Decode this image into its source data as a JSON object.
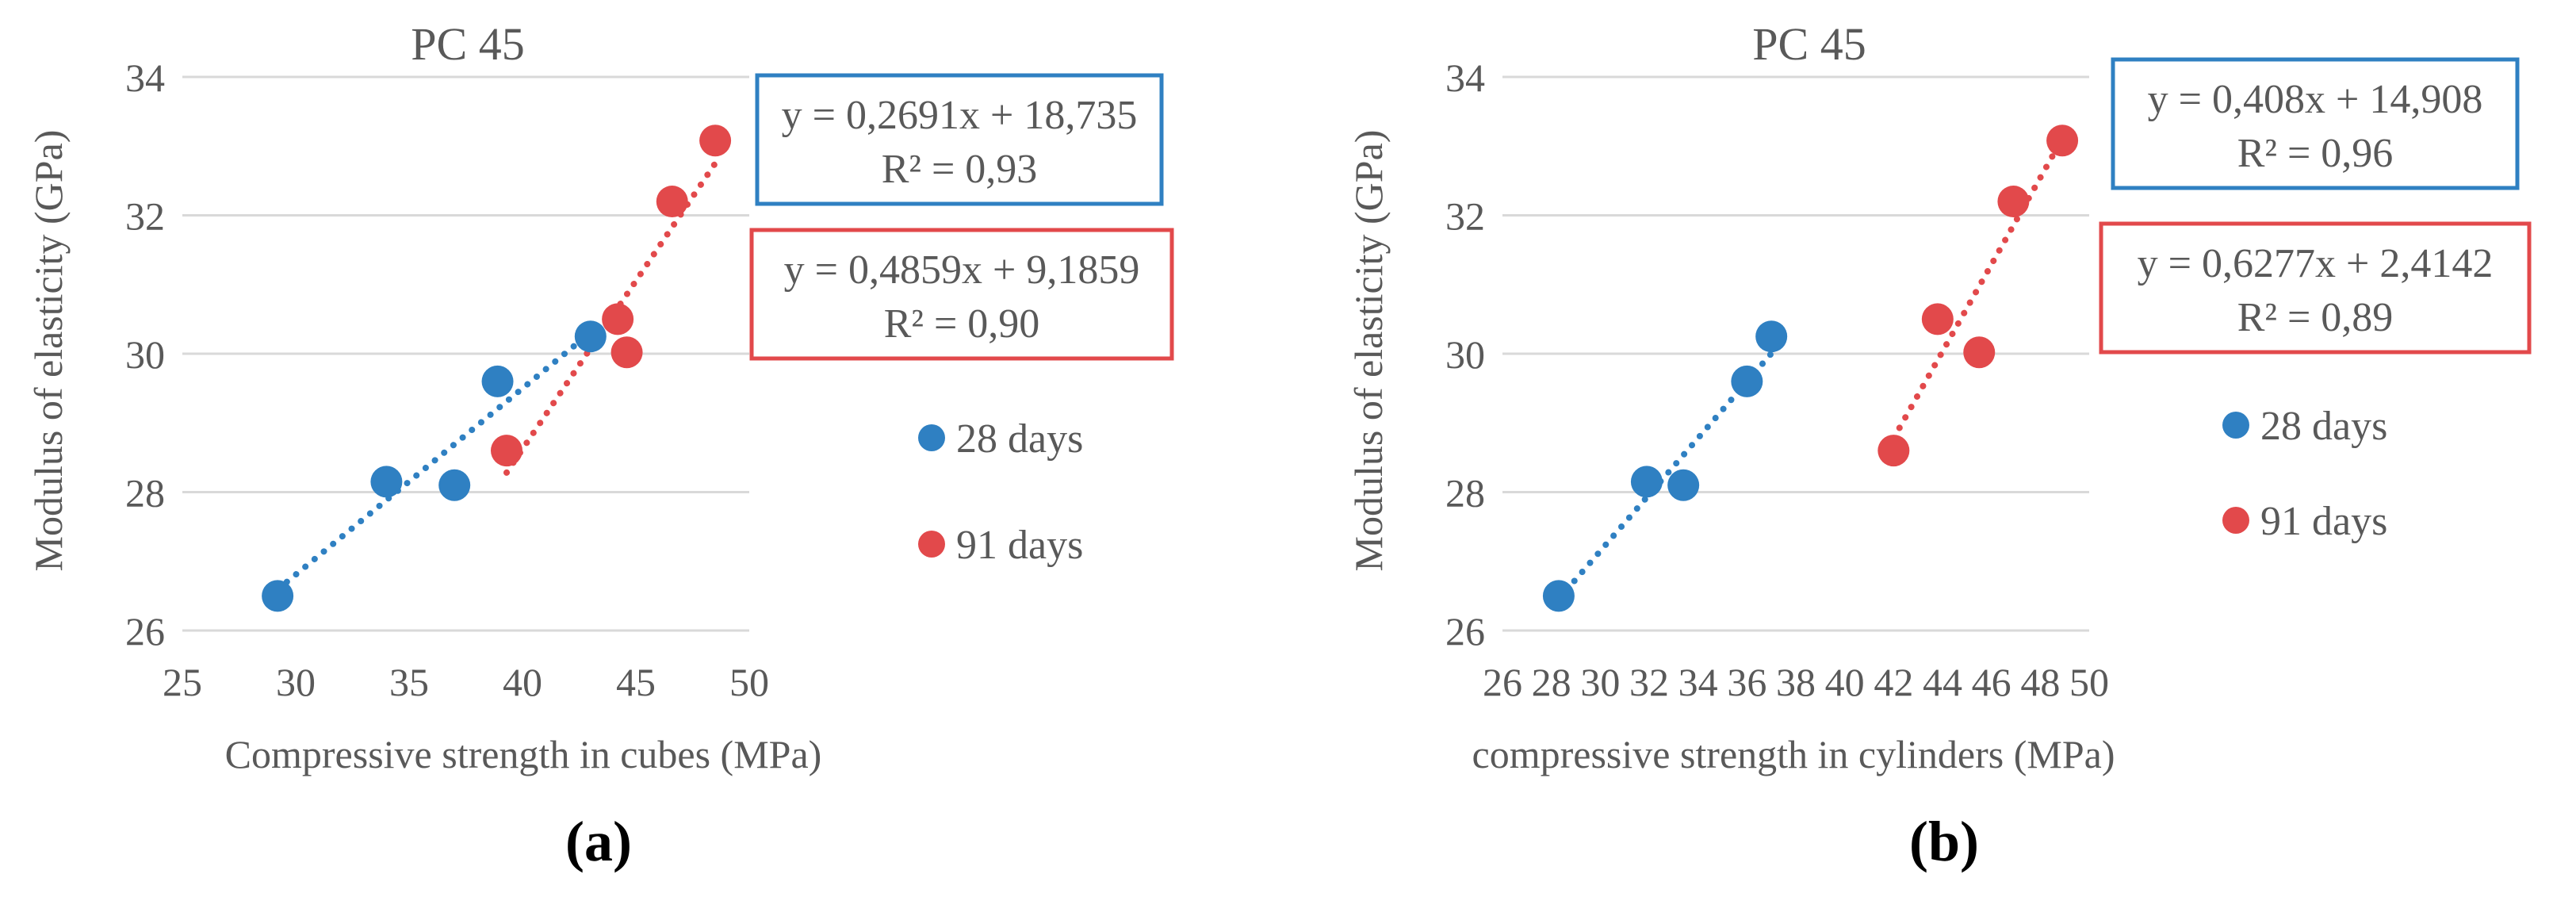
{
  "colors": {
    "series_28": "#2f80c2",
    "series_91": "#e2494b",
    "grid": "#d9d9d9",
    "text": "#595959",
    "caption": "#000000"
  },
  "chart_data": [
    {
      "type": "scatter",
      "title": "PC 45",
      "xlabel": "Compressive strength in cubes (MPa)",
      "ylabel": "Modulus of elasticity (GPa)",
      "xlim": [
        25,
        50
      ],
      "ylim": [
        26,
        34
      ],
      "xticks": [
        "25",
        "30",
        "35",
        "40",
        "45",
        "50"
      ],
      "yticks": [
        "26",
        "28",
        "30",
        "32",
        "34"
      ],
      "grid": "horizontal",
      "legend_placement": "right",
      "caption": "(a)",
      "series": [
        {
          "name": "28 days",
          "color": "#2f80c2",
          "x": [
            29.2,
            34.0,
            37.0,
            38.9,
            43.0
          ],
          "y": [
            26.5,
            28.15,
            28.1,
            29.6,
            30.25
          ],
          "trendline": {
            "x": [
              29.2,
              43.0
            ],
            "equation": "y = 0,2691x + 18,735",
            "r2": "R² = 0,93",
            "slope": 0.2691,
            "intercept": 18.735
          }
        },
        {
          "name": "91 days",
          "color": "#e2494b",
          "x": [
            39.3,
            44.2,
            44.6,
            46.6,
            48.5
          ],
          "y": [
            28.6,
            30.5,
            30.02,
            32.2,
            33.08
          ],
          "trendline": {
            "x": [
              39.3,
              48.5
            ],
            "equation": "y = 0,4859x + 9,1859",
            "r2": "R² = 0,90",
            "slope": 0.4859,
            "intercept": 9.1859
          }
        }
      ]
    },
    {
      "type": "scatter",
      "title": "PC 45",
      "xlabel": "compressive strength in cylinders (MPa)",
      "ylabel": "Modulus of elasticity  (GPa)",
      "xlim": [
        26,
        50
      ],
      "ylim": [
        26,
        34
      ],
      "xticks": [
        "26",
        "30",
        "34",
        "38",
        "42",
        "46",
        "50"
      ],
      "xticks_minor": [
        "28",
        "32",
        "36",
        "40",
        "44",
        "48"
      ],
      "yticks": [
        "26",
        "28",
        "30",
        "32",
        "34"
      ],
      "grid": "horizontal",
      "legend_placement": "right",
      "caption": "(b)",
      "series": [
        {
          "name": "28 days",
          "color": "#2f80c2",
          "x": [
            28.3,
            31.9,
            33.4,
            36.0,
            37.0
          ],
          "y": [
            26.5,
            28.15,
            28.1,
            29.6,
            30.25
          ],
          "trendline": {
            "x": [
              28.3,
              37.0
            ],
            "equation": "y = 0,408x + 14,908",
            "r2": "R² = 0,96",
            "slope": 0.408,
            "intercept": 14.908
          }
        },
        {
          "name": "91 days",
          "color": "#e2494b",
          "x": [
            42.0,
            43.8,
            45.5,
            46.9,
            48.9
          ],
          "y": [
            28.6,
            30.5,
            30.02,
            32.2,
            33.08
          ],
          "trendline": {
            "x": [
              42.0,
              48.9
            ],
            "equation": "y = 0,6277x + 2,4142",
            "r2": "R² = 0,89",
            "slope": 0.6277,
            "intercept": 2.4142
          }
        }
      ]
    }
  ]
}
